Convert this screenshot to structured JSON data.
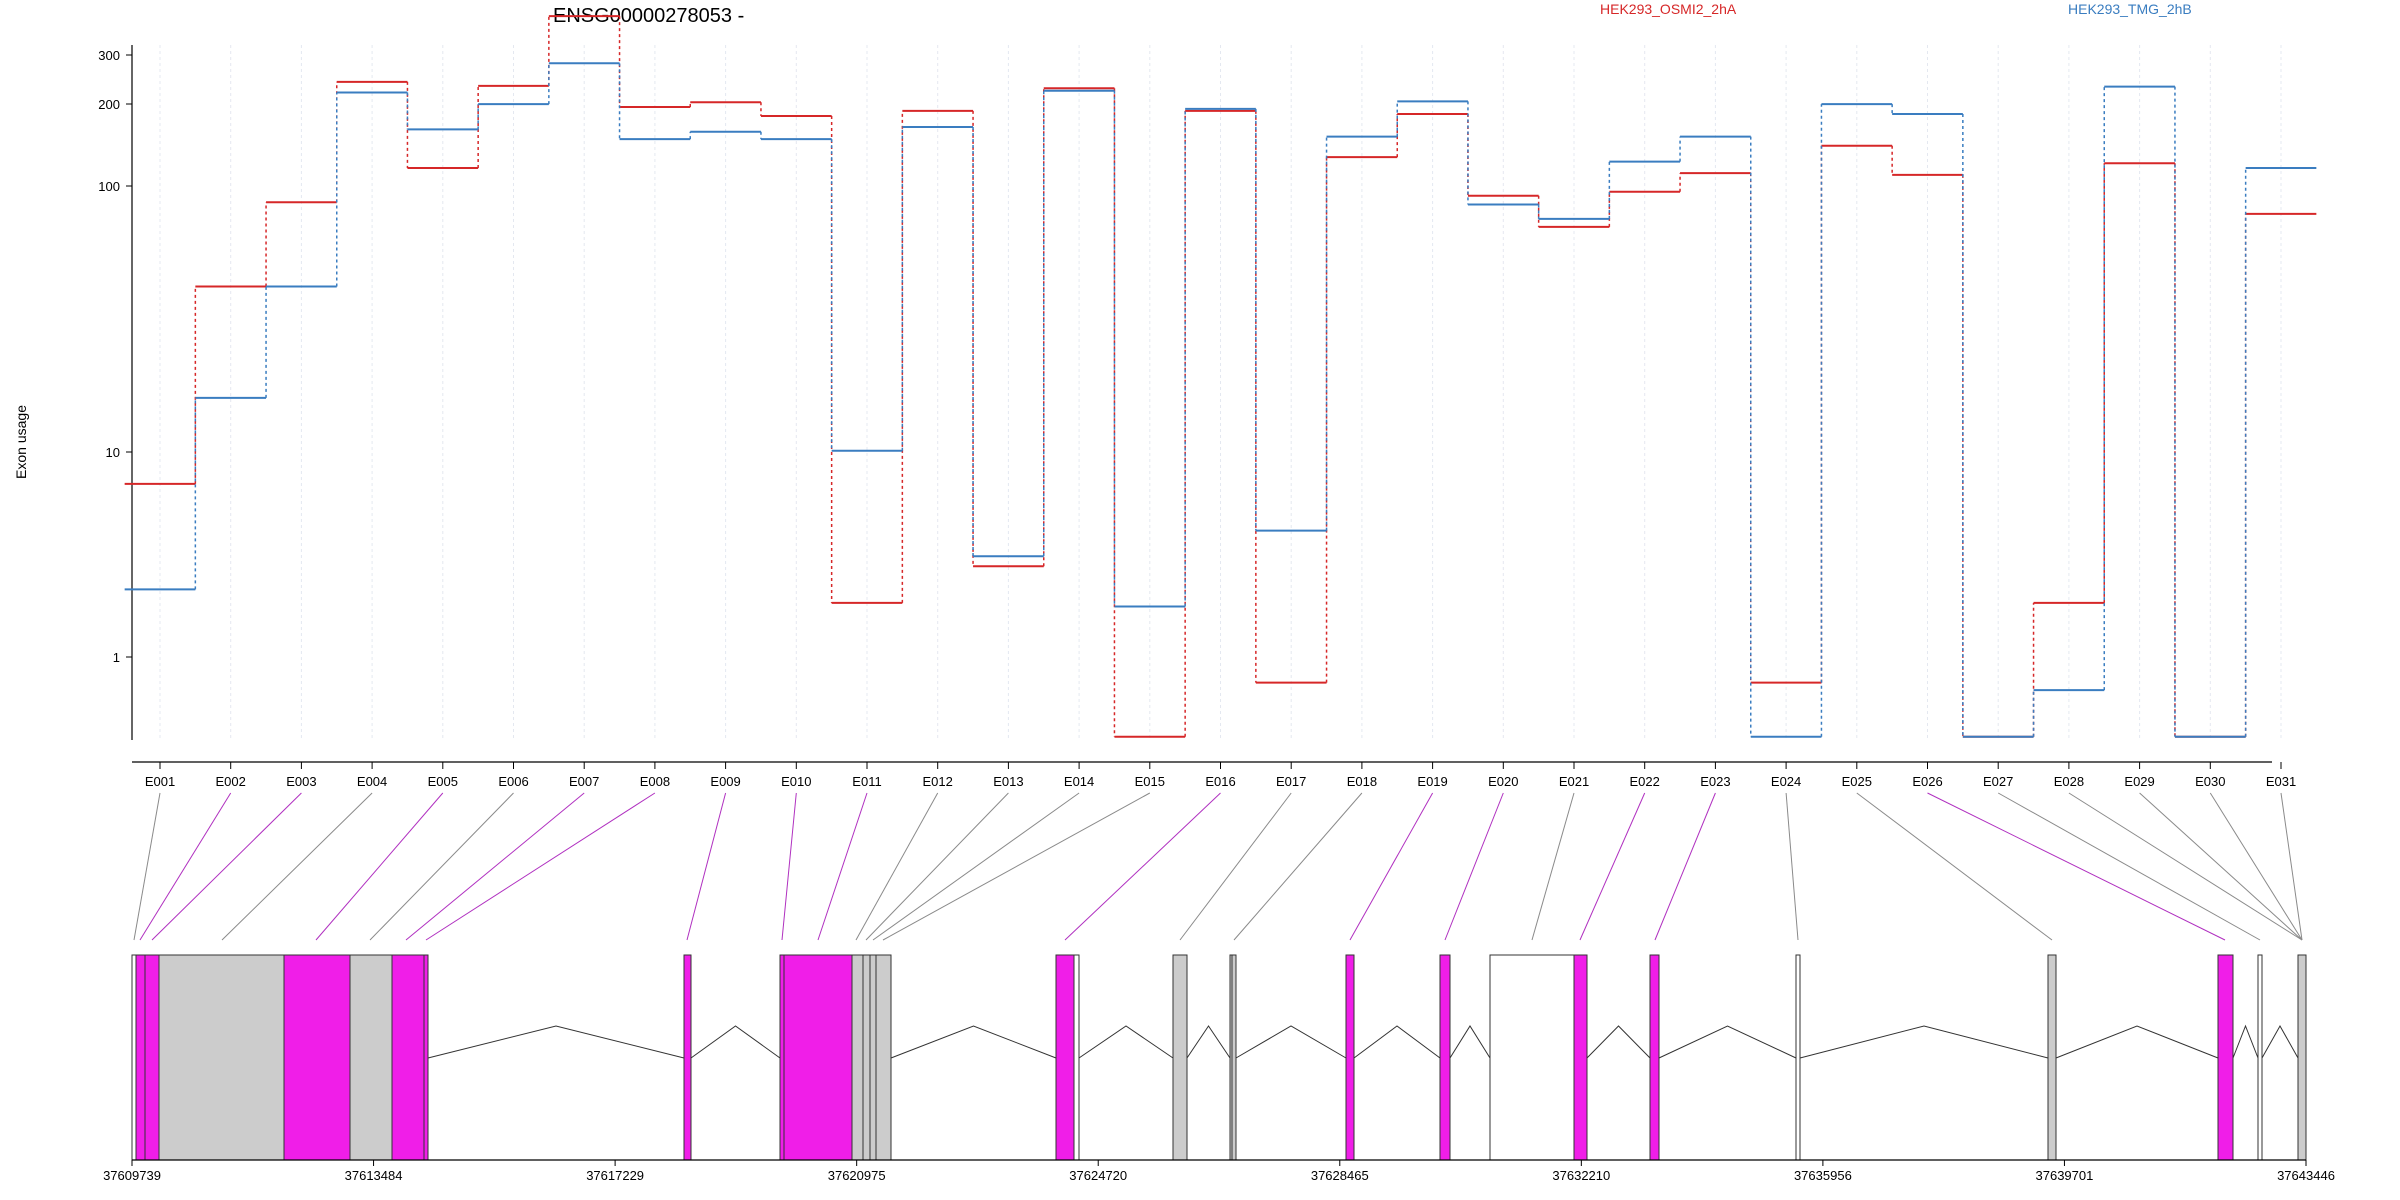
{
  "title": "ENSG00000278053 -",
  "legend": [
    {
      "name": "HEK293_OSMI2_2hA",
      "color": "#d62728"
    },
    {
      "name": "HEK293_TMG_2hB",
      "color": "#3a7dc0"
    }
  ],
  "ylabel": "Exon usage",
  "yticks": [
    "1",
    "10",
    "100",
    "200",
    "300"
  ],
  "chart_data": {
    "type": "line",
    "scale": "log",
    "ylim": [
      0.45,
      350
    ],
    "categories": [
      "E001",
      "E002",
      "E003",
      "E004",
      "E005",
      "E006",
      "E007",
      "E008",
      "E009",
      "E010",
      "E011",
      "E012",
      "E013",
      "E014",
      "E015",
      "E016",
      "E017",
      "E018",
      "E019",
      "E020",
      "E021",
      "E022",
      "E023",
      "E024",
      "E025",
      "E026",
      "E027",
      "E028",
      "E029",
      "E030",
      "E031"
    ],
    "series": [
      {
        "name": "HEK293_OSMI2_2hA",
        "color": "#d62728",
        "values": [
          4.5,
          25,
          52,
          148,
          70,
          143,
          262,
          119,
          124,
          110,
          1.6,
          115,
          2.2,
          140,
          0.5,
          115,
          0.8,
          77,
          112,
          55,
          42,
          57,
          67,
          0.8,
          85,
          66,
          0.5,
          1.6,
          73,
          0.5,
          47
        ]
      },
      {
        "name": "HEK293_TMG_2hB",
        "color": "#3a7dc0",
        "values": [
          1.8,
          9.5,
          25,
          135,
          98,
          122,
          174,
          90,
          96,
          90,
          6,
          100,
          2.4,
          137,
          1.55,
          117,
          3,
          92,
          125,
          51,
          45,
          74,
          92,
          0.5,
          122,
          112,
          0.5,
          0.75,
          142,
          0.5,
          70
        ]
      }
    ]
  },
  "gene_model": {
    "coordinate_labels": [
      "37609739",
      "37613484",
      "37617229",
      "37620975",
      "37624720",
      "37628465",
      "37632210",
      "37635956",
      "37639701",
      "37643446"
    ],
    "exons": [
      {
        "s": 132,
        "e": 136,
        "fill": "#ffffff"
      },
      {
        "s": 136,
        "e": 145,
        "fill": "#f01ee8"
      },
      {
        "s": 145,
        "e": 159,
        "fill": "#f01ee8"
      },
      {
        "s": 159,
        "e": 284,
        "fill": "#cccccc"
      },
      {
        "s": 284,
        "e": 350,
        "fill": "#f01ee8"
      },
      {
        "s": 350,
        "e": 392,
        "fill": "#cccccc"
      },
      {
        "s": 392,
        "e": 424,
        "fill": "#f01ee8"
      },
      {
        "s": 424,
        "e": 428,
        "fill": "#f01ee8"
      },
      {
        "s": 684,
        "e": 691,
        "fill": "#f01ee8"
      },
      {
        "s": 780,
        "e": 784,
        "fill": "#f01ee8"
      },
      {
        "s": 784,
        "e": 852,
        "fill": "#f01ee8"
      },
      {
        "s": 852,
        "e": 863,
        "fill": "#cccccc"
      },
      {
        "s": 863,
        "e": 870,
        "fill": "#cccccc"
      },
      {
        "s": 870,
        "e": 876,
        "fill": "#cccccc"
      },
      {
        "s": 876,
        "e": 891,
        "fill": "#cccccc"
      },
      {
        "s": 1056,
        "e": 1074,
        "fill": "#f01ee8"
      },
      {
        "s": 1074,
        "e": 1079,
        "fill": "#ffffff"
      },
      {
        "s": 1173,
        "e": 1187,
        "fill": "#cccccc"
      },
      {
        "s": 1230,
        "e": 1232,
        "fill": "#cccccc"
      },
      {
        "s": 1232,
        "e": 1236,
        "fill": "#cccccc"
      },
      {
        "s": 1346,
        "e": 1354,
        "fill": "#f01ee8"
      },
      {
        "s": 1440,
        "e": 1450,
        "fill": "#f01ee8"
      },
      {
        "s": 1490,
        "e": 1574,
        "fill": "#ffffff"
      },
      {
        "s": 1574,
        "e": 1587,
        "fill": "#f01ee8"
      },
      {
        "s": 1650,
        "e": 1659,
        "fill": "#f01ee8"
      },
      {
        "s": 1796,
        "e": 1800,
        "fill": "#ffffff"
      },
      {
        "s": 2048,
        "e": 2056,
        "fill": "#cccccc"
      },
      {
        "s": 2218,
        "e": 2233,
        "fill": "#f01ee8"
      },
      {
        "s": 2258,
        "e": 2262,
        "fill": "#ffffff"
      },
      {
        "s": 2298,
        "e": 2306,
        "fill": "#cccccc"
      }
    ],
    "connector_targets": [
      134,
      140,
      152,
      222,
      316,
      370,
      406,
      426,
      687,
      782,
      818,
      856,
      866,
      873,
      883,
      1065,
      1180,
      1234,
      1350,
      1445,
      1532,
      1580,
      1655,
      1798,
      2052,
      2225,
      2260,
      2302,
      2302,
      2302,
      2302
    ],
    "connector_magenta": [
      false,
      true,
      true,
      false,
      true,
      false,
      true,
      true,
      true,
      true,
      true,
      false,
      false,
      false,
      false,
      true,
      false,
      false,
      true,
      true,
      false,
      true,
      true,
      false,
      false,
      true,
      false,
      false,
      false,
      false,
      false
    ]
  }
}
